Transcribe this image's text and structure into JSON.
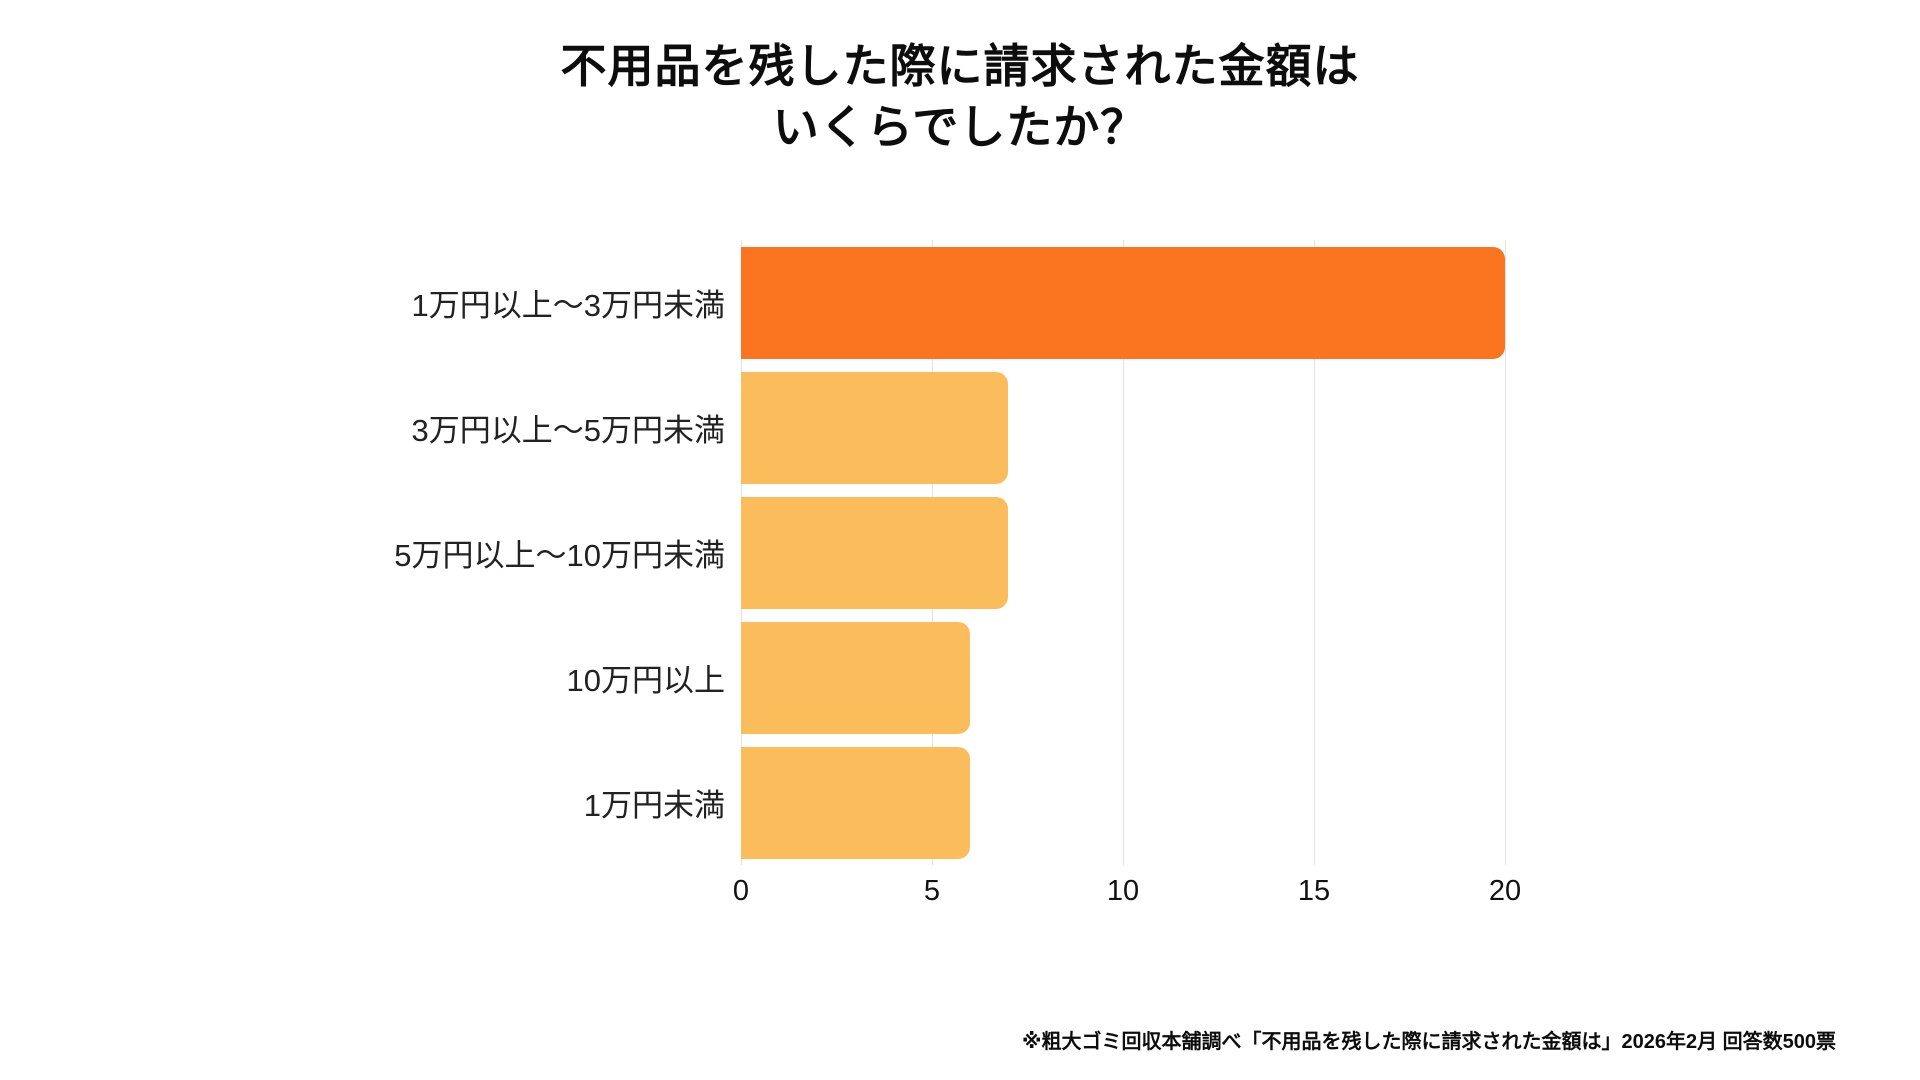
{
  "title": {
    "line1": "不用品を残した際に請求された金額は",
    "line2": "いくらでしたか？"
  },
  "chart_data": {
    "type": "bar",
    "orientation": "horizontal",
    "title": "不用品を残した際に請求された金額は いくらでしたか？",
    "categories": [
      "1万円以上〜3万円未満",
      "3万円以上〜5万円未満",
      "5万円以上〜10万円未満",
      "10万円以上",
      "1万円未満"
    ],
    "values": [
      20,
      7,
      7,
      6,
      6
    ],
    "xlim": [
      0,
      20
    ],
    "x_ticks": [
      "0",
      "5",
      "10",
      "15",
      "20"
    ],
    "x_tick_values": [
      0,
      5,
      10,
      15,
      20
    ],
    "grid": true,
    "legend": "none",
    "highlight_index": 0,
    "colors": {
      "highlight_bar": "#fb741f",
      "default_bar": "#fbbc5c",
      "gridline": "#e2e2e2",
      "text": "#111111"
    }
  },
  "footnote": "※粗大ゴミ回収本舗調べ「不用品を残した際に請求された金額は」2026年2月 回答数500票"
}
